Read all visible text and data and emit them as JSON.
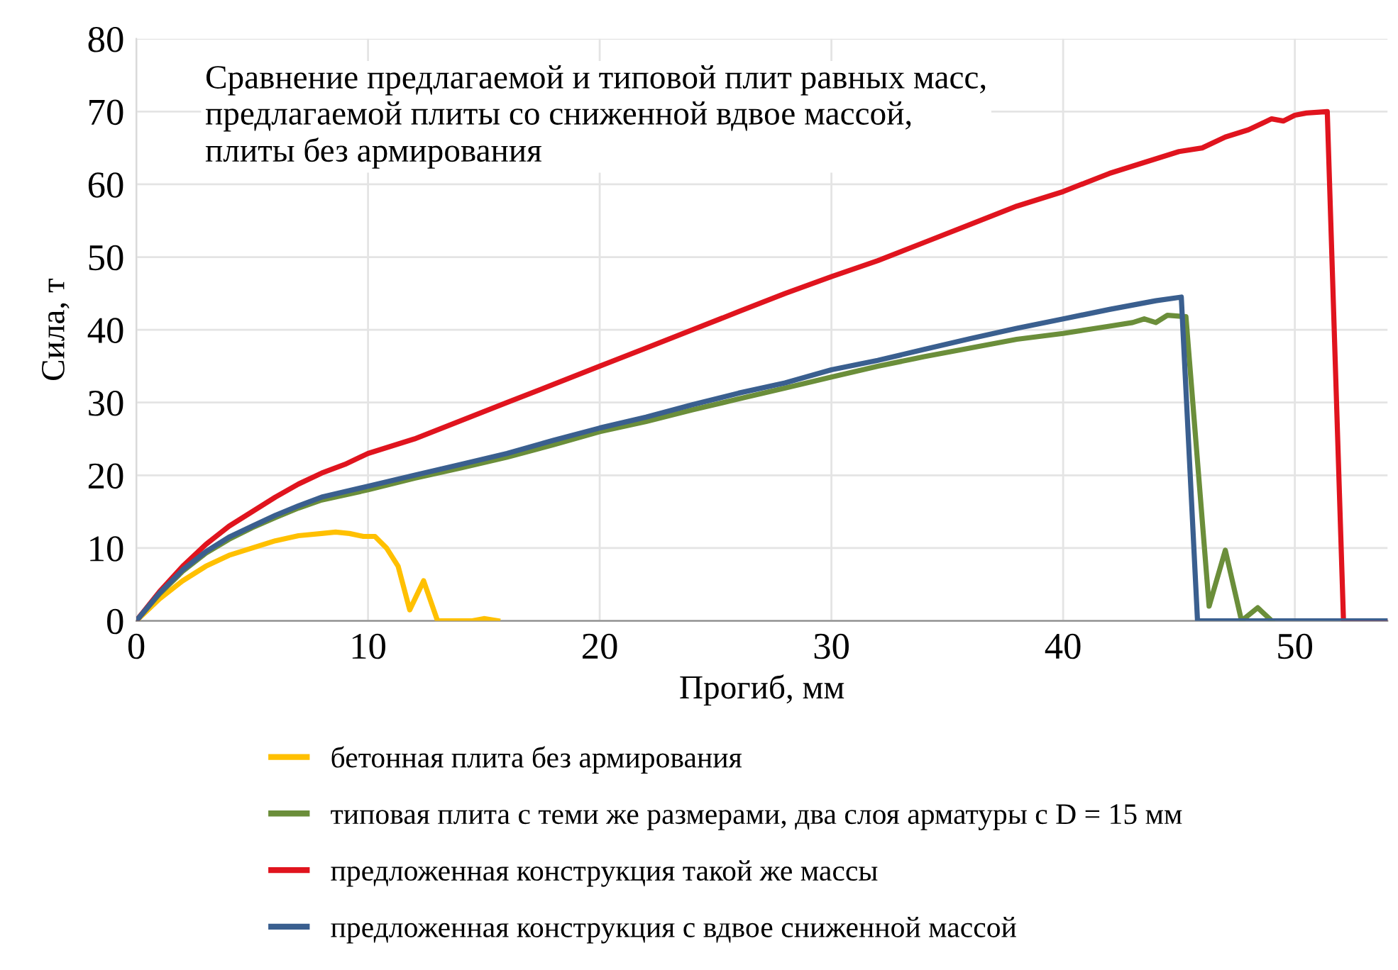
{
  "chart_data": {
    "type": "line",
    "title": "Сравнение предлагаемой и типовой плит равных масс,\nпредлагаемой плиты со сниженной вдвое массой,\nплиты без армирования",
    "xlabel": "Прогиб, мм",
    "ylabel": "Сила, т",
    "xlim": [
      0,
      54
    ],
    "xticks": [
      0,
      10,
      20,
      30,
      40,
      50
    ],
    "ylim": [
      0,
      80
    ],
    "yticks": [
      0,
      10,
      20,
      30,
      40,
      50,
      60,
      70,
      80
    ],
    "grid": true,
    "legend": "bottom",
    "marker": "none",
    "line_style": "solid",
    "series": [
      {
        "name": "бетонная плита без армирования",
        "color": "#ffc000",
        "x": [
          0,
          1,
          2,
          3,
          4,
          5,
          6,
          7,
          8,
          8.6,
          9.2,
          9.8,
          10.3,
          10.8,
          11.3,
          11.8,
          12.4,
          13,
          14,
          14.5,
          15,
          15.6
        ],
        "values": [
          0,
          3,
          5.5,
          7.5,
          9,
          10,
          11,
          11.7,
          12,
          12.2,
          12,
          11.6,
          11.6,
          10,
          7.5,
          1.5,
          5.5,
          0,
          0,
          0,
          0.3,
          0
        ]
      },
      {
        "name": "типовая плита с теми же размерами, два слоя арматуры с D = 15 мм",
        "color": "#6b8e3a",
        "x": [
          0,
          1,
          2,
          3,
          4,
          5,
          6,
          7,
          8,
          10,
          12,
          14,
          16,
          18,
          20,
          22,
          24,
          26,
          28,
          30,
          32,
          34,
          36,
          38,
          40,
          42,
          43,
          43.5,
          44,
          44.5,
          45.3,
          46.3,
          47,
          47.7,
          48.4,
          49
        ],
        "values": [
          0,
          3.7,
          6.8,
          9.3,
          11.2,
          12.8,
          14.2,
          15.5,
          16.6,
          18,
          19.6,
          21,
          22.5,
          24.2,
          26,
          27.4,
          29,
          30.5,
          32,
          33.5,
          35,
          36.3,
          37.5,
          38.7,
          39.5,
          40.5,
          41,
          41.5,
          41,
          42,
          41.8,
          2,
          9.7,
          0,
          1.8,
          0
        ]
      },
      {
        "name": "предложенная конструкция такой же массы",
        "color": "#e0141e",
        "x": [
          0,
          1,
          2,
          3,
          4,
          5,
          6,
          7,
          8,
          9,
          10,
          12,
          14,
          16,
          18,
          20,
          22,
          24,
          26,
          28,
          30,
          32,
          34,
          36,
          38,
          40,
          42,
          44,
          45,
          46,
          47,
          48,
          49,
          49.5,
          50,
          50.5,
          51.4,
          52.1,
          54
        ],
        "values": [
          0,
          4,
          7.5,
          10.5,
          13,
          15,
          17,
          18.8,
          20.3,
          21.5,
          23,
          25,
          27.5,
          30,
          32.5,
          35,
          37.5,
          40,
          42.5,
          45,
          47.3,
          49.5,
          52,
          54.5,
          57,
          59,
          61.5,
          63.5,
          64.5,
          65,
          66.5,
          67.5,
          69,
          68.7,
          69.5,
          69.8,
          70,
          0,
          0
        ]
      },
      {
        "name": "предложенная конструкция с вдвое сниженной массой",
        "color": "#3a5f8f",
        "x": [
          0,
          1,
          2,
          3,
          4,
          5,
          6,
          7,
          8,
          10,
          12,
          14,
          16,
          18,
          20,
          22,
          24,
          26,
          28,
          30,
          32,
          34,
          36,
          38,
          40,
          42,
          44,
          45.1,
          45.8,
          54
        ],
        "values": [
          0,
          3.8,
          7,
          9.5,
          11.5,
          13,
          14.5,
          15.8,
          17,
          18.5,
          20,
          21.5,
          23,
          24.8,
          26.5,
          28,
          29.7,
          31.3,
          32.7,
          34.5,
          35.8,
          37.3,
          38.8,
          40.2,
          41.5,
          42.8,
          44,
          44.5,
          0,
          0
        ]
      }
    ]
  }
}
